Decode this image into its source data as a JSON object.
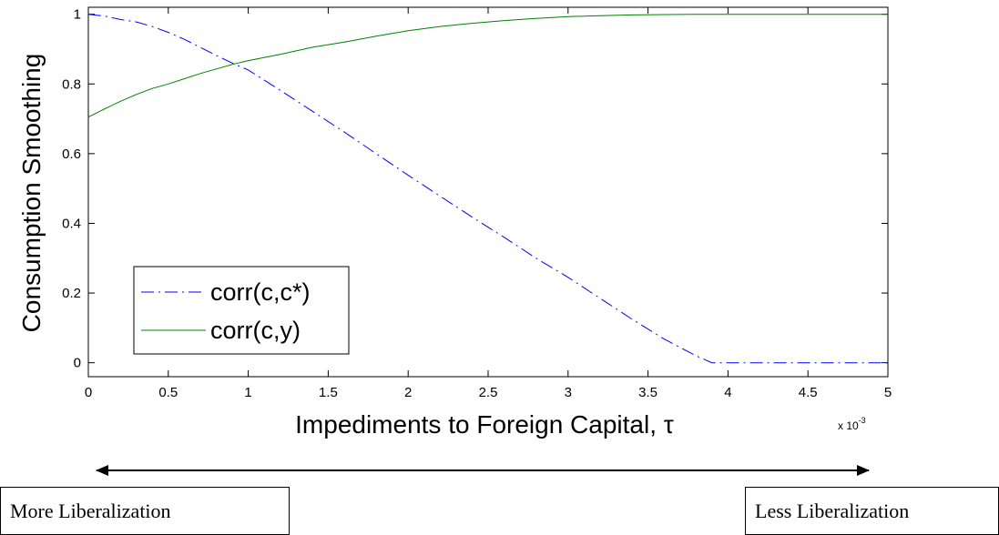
{
  "chart_data": {
    "type": "line",
    "xlabel": "Impediments to Foreign Capital, τ",
    "ylabel": "Consumption Smoothing",
    "x_exponent_label": "x 10",
    "x_exponent_power": "-3",
    "xlim": [
      0,
      5
    ],
    "ylim": [
      -0.04,
      1.02
    ],
    "xticks": [
      0,
      0.5,
      1,
      1.5,
      2,
      2.5,
      3,
      3.5,
      4,
      4.5,
      5
    ],
    "xtick_labels": [
      "0",
      "0.5",
      "1",
      "1.5",
      "2",
      "2.5",
      "3",
      "3.5",
      "4",
      "4.5",
      "5"
    ],
    "yticks": [
      0,
      0.2,
      0.4,
      0.6,
      0.8,
      1
    ],
    "ytick_labels": [
      "0",
      "0.2",
      "0.4",
      "0.6",
      "0.8",
      "1"
    ],
    "grid": false,
    "legend_position": "bottom-left",
    "series": [
      {
        "name": "corr(c,c*)",
        "color": "#0000ff",
        "style": "dash-dot",
        "x": [
          0,
          0.1,
          0.2,
          0.3,
          0.4,
          0.5,
          0.6,
          0.7,
          0.8,
          0.9,
          1.0,
          1.2,
          1.4,
          1.6,
          1.8,
          2.0,
          2.2,
          2.4,
          2.6,
          2.8,
          3.0,
          3.2,
          3.4,
          3.6,
          3.8,
          3.9,
          4.0,
          4.5,
          5.0
        ],
        "y": [
          1.0,
          0.995,
          0.985,
          0.978,
          0.965,
          0.948,
          0.928,
          0.905,
          0.882,
          0.86,
          0.84,
          0.782,
          0.722,
          0.662,
          0.6,
          0.538,
          0.478,
          0.418,
          0.36,
          0.3,
          0.245,
          0.185,
          0.125,
          0.068,
          0.02,
          0.0,
          0.0,
          0.0,
          0.0
        ]
      },
      {
        "name": "corr(c,y)",
        "color": "#008000",
        "style": "solid",
        "x": [
          0,
          0.1,
          0.2,
          0.3,
          0.4,
          0.5,
          0.6,
          0.7,
          0.8,
          0.9,
          1.0,
          1.2,
          1.4,
          1.6,
          1.8,
          2.0,
          2.2,
          2.4,
          2.6,
          2.8,
          3.0,
          3.2,
          3.4,
          3.6,
          3.8,
          4.0,
          4.5,
          5.0
        ],
        "y": [
          0.705,
          0.728,
          0.75,
          0.77,
          0.787,
          0.8,
          0.815,
          0.83,
          0.843,
          0.856,
          0.867,
          0.885,
          0.905,
          0.92,
          0.937,
          0.953,
          0.965,
          0.974,
          0.982,
          0.988,
          0.993,
          0.996,
          0.998,
          0.999,
          1.0,
          1.0,
          1.0,
          1.0
        ]
      }
    ]
  },
  "annotations": {
    "left_box": "More Liberalization",
    "right_box": "Less Liberalization"
  }
}
